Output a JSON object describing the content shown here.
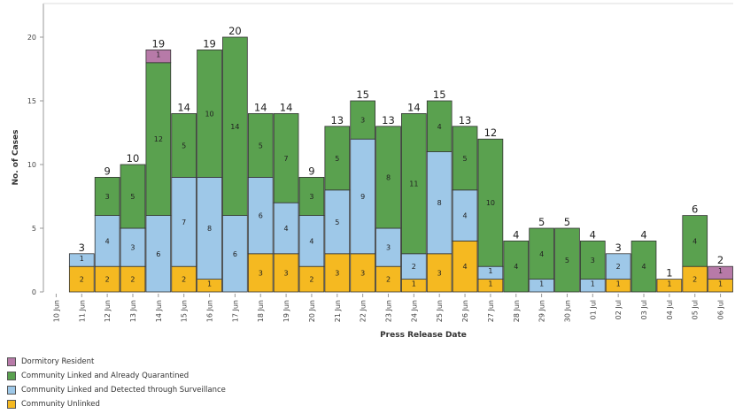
{
  "chart_data": {
    "type": "bar",
    "stacked": true,
    "xlabel": "Press Release Date",
    "ylabel": "No. of Cases",
    "ylim": [
      0,
      21.5
    ],
    "yticks": [
      0,
      5,
      10,
      15,
      20
    ],
    "grid": false,
    "legend": "bottom-left",
    "categories": [
      "10 Jun",
      "11 Jun",
      "12 Jun",
      "13 Jun",
      "14 Jun",
      "15 Jun",
      "16 Jun",
      "17 Jun",
      "18 Jun",
      "19 Jun",
      "20 Jun",
      "21 Jun",
      "22 Jun",
      "23 Jun",
      "24 Jun",
      "25 Jun",
      "26 Jun",
      "27 Jun",
      "28 Jun",
      "29 Jun",
      "30 Jun",
      "01 Jul",
      "02 Jul",
      "03 Jul",
      "04 Jul",
      "05 Jul",
      "06 Jul"
    ],
    "totals": [
      0,
      3,
      9,
      10,
      19,
      14,
      19,
      20,
      14,
      14,
      9,
      13,
      15,
      13,
      14,
      15,
      13,
      12,
      4,
      5,
      5,
      4,
      3,
      4,
      1,
      6,
      2
    ],
    "series": [
      {
        "name": "Community Unlinked",
        "color": "#f5b921",
        "values": [
          0,
          2,
          2,
          2,
          0,
          2,
          1,
          0,
          3,
          3,
          2,
          3,
          3,
          2,
          1,
          3,
          4,
          1,
          0,
          0,
          0,
          0,
          1,
          0,
          1,
          2,
          1
        ]
      },
      {
        "name": "Community Linked and Detected through Surveillance",
        "color": "#9ec8e8",
        "values": [
          0,
          1,
          4,
          3,
          6,
          7,
          8,
          6,
          6,
          4,
          4,
          5,
          9,
          3,
          2,
          8,
          4,
          1,
          0,
          1,
          0,
          1,
          2,
          0,
          0,
          0,
          0
        ]
      },
      {
        "name": "Community Linked and Already Quarantined",
        "color": "#5aa14f",
        "values": [
          0,
          0,
          3,
          5,
          12,
          5,
          10,
          14,
          5,
          7,
          3,
          5,
          3,
          8,
          11,
          4,
          5,
          10,
          4,
          4,
          5,
          3,
          0,
          4,
          0,
          4,
          0
        ]
      },
      {
        "name": "Dormitory Resident",
        "color": "#b77aa8",
        "values": [
          0,
          0,
          0,
          0,
          1,
          0,
          0,
          0,
          0,
          0,
          0,
          0,
          0,
          0,
          0,
          0,
          0,
          0,
          0,
          0,
          0,
          0,
          0,
          0,
          0,
          0,
          1
        ]
      }
    ]
  }
}
